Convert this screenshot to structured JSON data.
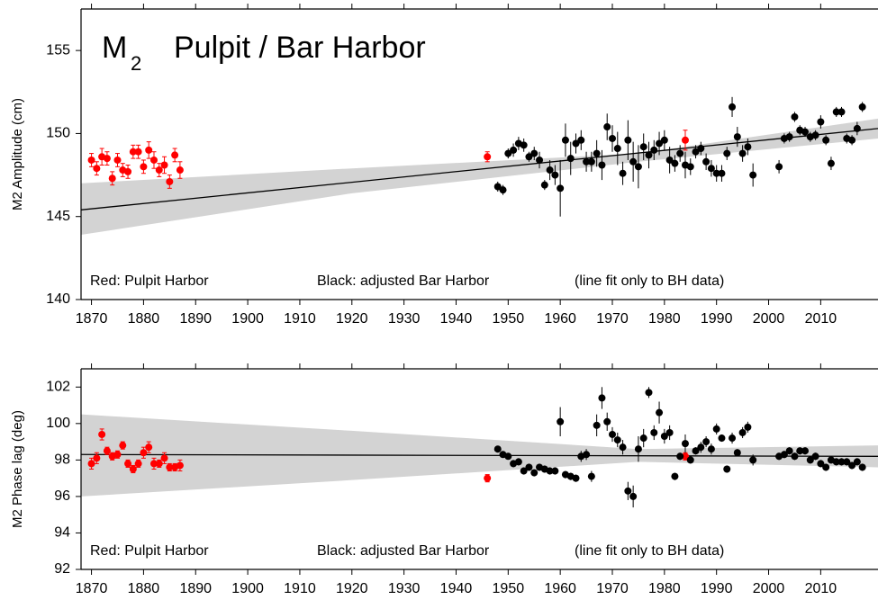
{
  "chart_data": [
    {
      "type": "scatter",
      "title_main": "M",
      "title_sub": "2",
      "title_rest": "Pulpit / Bar Harbor",
      "y_label": "M2 Amplitude (cm)",
      "xlim": [
        1868,
        2021
      ],
      "xticks": [
        1870,
        1880,
        1890,
        1900,
        1910,
        1920,
        1930,
        1940,
        1950,
        1960,
        1970,
        1980,
        1990,
        2000,
        2010
      ],
      "ylim": [
        140,
        157.5
      ],
      "yticks": [
        140,
        145,
        150,
        155
      ],
      "annotations": [
        {
          "text": "Red: Pulpit Harbor",
          "color": "#e00000"
        },
        {
          "text": "Black: adjusted Bar Harbor",
          "color": "#000000"
        },
        {
          "text": "(line fit only to BH data)",
          "color": "#000000"
        }
      ],
      "band": {
        "color": "#d3d3d3",
        "x": [
          1868,
          1920,
          1975,
          2021
        ],
        "lower": [
          143.9,
          146.4,
          148.3,
          149.7
        ],
        "upper": [
          147.0,
          147.9,
          148.8,
          150.9
        ]
      },
      "fit": {
        "color": "#000000",
        "x": [
          1868,
          2021
        ],
        "y": [
          145.4,
          150.3
        ]
      },
      "series": [
        {
          "color": "#ff0000",
          "x": [
            1870,
            1871,
            1872,
            1873,
            1874,
            1875,
            1876,
            1877,
            1878,
            1879,
            1880,
            1881,
            1882,
            1883,
            1884,
            1885,
            1886,
            1887,
            1946,
            1984
          ],
          "values": [
            148.4,
            147.9,
            148.6,
            148.5,
            147.3,
            148.4,
            147.8,
            147.7,
            148.9,
            148.9,
            148.0,
            149.0,
            148.4,
            147.8,
            148.1,
            147.1,
            148.7,
            147.8,
            148.6,
            149.6
          ],
          "errors": [
            0.4,
            0.4,
            0.5,
            0.4,
            0.4,
            0.4,
            0.4,
            0.4,
            0.4,
            0.4,
            0.4,
            0.5,
            0.5,
            0.4,
            0.5,
            0.4,
            0.4,
            0.5,
            0.3,
            0.6
          ]
        },
        {
          "color": "#000000",
          "x": [
            1948,
            1949,
            1950,
            1951,
            1952,
            1953,
            1954,
            1955,
            1956,
            1957,
            1958,
            1959,
            1960,
            1961,
            1962,
            1963,
            1964,
            1965,
            1966,
            1967,
            1968,
            1969,
            1970,
            1971,
            1972,
            1973,
            1974,
            1975,
            1976,
            1977,
            1978,
            1979,
            1980,
            1981,
            1982,
            1983,
            1984,
            1985,
            1986,
            1987,
            1988,
            1989,
            1990,
            1991,
            1992,
            1993,
            1994,
            1995,
            1996,
            1997,
            2002,
            2003,
            2004,
            2005,
            2006,
            2007,
            2008,
            2009,
            2010,
            2011,
            2012,
            2013,
            2014,
            2015,
            2016,
            2017,
            2018
          ],
          "values": [
            146.8,
            146.6,
            148.8,
            149.0,
            149.4,
            149.3,
            148.6,
            148.8,
            148.4,
            146.9,
            147.8,
            147.5,
            146.7,
            149.6,
            148.5,
            149.4,
            149.6,
            148.3,
            148.3,
            148.8,
            148.1,
            150.4,
            149.7,
            149.1,
            147.6,
            149.6,
            148.3,
            148.0,
            149.2,
            148.7,
            149.0,
            149.4,
            149.6,
            148.4,
            148.2,
            148.8,
            148.1,
            148.0,
            148.9,
            149.1,
            148.3,
            147.9,
            147.6,
            147.6,
            148.8,
            151.6,
            149.8,
            148.8,
            149.2,
            147.5,
            148.0,
            149.7,
            149.8,
            151.0,
            150.2,
            150.1,
            149.8,
            149.9,
            150.7,
            149.6,
            148.2,
            151.3,
            151.3,
            149.7,
            149.6,
            150.3,
            151.6
          ],
          "errors": [
            0.3,
            0.3,
            0.3,
            0.4,
            0.4,
            0.4,
            0.3,
            0.4,
            0.5,
            0.3,
            0.6,
            0.6,
            1.7,
            1.0,
            1.0,
            0.6,
            0.6,
            0.6,
            0.6,
            0.8,
            0.9,
            0.8,
            0.8,
            1.0,
            0.7,
            1.2,
            1.2,
            1.3,
            0.8,
            0.8,
            0.6,
            0.7,
            0.6,
            0.8,
            0.5,
            0.5,
            0.8,
            0.5,
            0.4,
            0.4,
            0.5,
            0.5,
            0.5,
            0.5,
            0.4,
            0.6,
            0.6,
            0.5,
            0.5,
            0.7,
            0.4,
            0.3,
            0.3,
            0.3,
            0.3,
            0.3,
            0.3,
            0.3,
            0.4,
            0.3,
            0.4,
            0.3,
            0.3,
            0.3,
            0.3,
            0.4,
            0.3
          ]
        }
      ]
    },
    {
      "type": "scatter",
      "y_label": "M2 Phase lag (deg)",
      "xlim": [
        1868,
        2021
      ],
      "xticks": [
        1870,
        1880,
        1890,
        1900,
        1910,
        1920,
        1930,
        1940,
        1950,
        1960,
        1970,
        1980,
        1990,
        2000,
        2010
      ],
      "ylim": [
        92,
        103
      ],
      "yticks": [
        92,
        94,
        96,
        98,
        100,
        102
      ],
      "annotations": [
        {
          "text": "Red: Pulpit Harbor",
          "color": "#e00000"
        },
        {
          "text": "Black: adjusted Bar Harbor",
          "color": "#000000"
        },
        {
          "text": "(line fit only to BH data)",
          "color": "#000000"
        }
      ],
      "band": {
        "color": "#d3d3d3",
        "x": [
          1868,
          1920,
          1975,
          2021
        ],
        "lower": [
          96.0,
          96.9,
          97.9,
          97.6
        ],
        "upper": [
          100.5,
          99.6,
          98.6,
          98.8
        ]
      },
      "fit": {
        "color": "#000000",
        "x": [
          1868,
          2021
        ],
        "y": [
          98.3,
          98.2
        ]
      },
      "series": [
        {
          "color": "#ff0000",
          "x": [
            1870,
            1871,
            1872,
            1873,
            1874,
            1875,
            1876,
            1877,
            1878,
            1879,
            1880,
            1881,
            1882,
            1883,
            1884,
            1885,
            1886,
            1887,
            1946,
            1984
          ],
          "values": [
            97.8,
            98.1,
            99.4,
            98.5,
            98.2,
            98.3,
            98.8,
            97.8,
            97.5,
            97.8,
            98.4,
            98.7,
            97.8,
            97.8,
            98.1,
            97.6,
            97.6,
            97.7,
            97.0,
            98.2
          ],
          "errors": [
            0.3,
            0.3,
            0.3,
            0.2,
            0.2,
            0.2,
            0.2,
            0.2,
            0.2,
            0.2,
            0.3,
            0.3,
            0.3,
            0.2,
            0.3,
            0.2,
            0.2,
            0.3,
            0.2,
            0.2
          ]
        },
        {
          "color": "#000000",
          "x": [
            1948,
            1949,
            1950,
            1951,
            1952,
            1953,
            1954,
            1955,
            1956,
            1957,
            1958,
            1959,
            1960,
            1961,
            1962,
            1963,
            1964,
            1965,
            1966,
            1967,
            1968,
            1969,
            1970,
            1971,
            1972,
            1973,
            1974,
            1975,
            1976,
            1977,
            1978,
            1979,
            1980,
            1981,
            1982,
            1983,
            1984,
            1985,
            1986,
            1987,
            1988,
            1989,
            1990,
            1991,
            1992,
            1993,
            1994,
            1995,
            1996,
            1997,
            2002,
            2003,
            2004,
            2005,
            2006,
            2007,
            2008,
            2009,
            2010,
            2011,
            2012,
            2013,
            2014,
            2015,
            2016,
            2017,
            2018
          ],
          "values": [
            98.6,
            98.3,
            98.2,
            97.8,
            97.9,
            97.4,
            97.6,
            97.3,
            97.6,
            97.5,
            97.4,
            97.4,
            100.1,
            97.2,
            97.1,
            97.0,
            98.2,
            98.3,
            97.1,
            99.9,
            101.4,
            100.1,
            99.4,
            99.1,
            98.7,
            96.3,
            96.0,
            98.6,
            99.2,
            101.7,
            99.5,
            100.6,
            99.3,
            99.5,
            97.1,
            98.2,
            98.9,
            98.0,
            98.5,
            98.7,
            99.0,
            98.6,
            99.7,
            99.2,
            97.5,
            99.2,
            98.4,
            99.5,
            99.8,
            98.0,
            98.2,
            98.3,
            98.5,
            98.2,
            98.5,
            98.5,
            98.0,
            98.2,
            97.8,
            97.6,
            98.0,
            97.9,
            97.9,
            97.9,
            97.7,
            97.9,
            97.6
          ],
          "errors": [
            0.1,
            0.1,
            0.1,
            0.2,
            0.2,
            0.2,
            0.2,
            0.2,
            0.2,
            0.2,
            0.2,
            0.2,
            0.8,
            0.2,
            0.2,
            0.2,
            0.3,
            0.3,
            0.3,
            0.6,
            0.6,
            0.5,
            0.4,
            0.4,
            0.4,
            0.5,
            0.6,
            0.7,
            0.5,
            0.3,
            0.4,
            0.6,
            0.4,
            0.4,
            0.2,
            0.2,
            0.5,
            0.2,
            0.2,
            0.3,
            0.3,
            0.3,
            0.3,
            0.2,
            0.2,
            0.3,
            0.2,
            0.3,
            0.3,
            0.3,
            0.2,
            0.2,
            0.2,
            0.2,
            0.2,
            0.2,
            0.2,
            0.2,
            0.2,
            0.2,
            0.2,
            0.2,
            0.2,
            0.2,
            0.2,
            0.2,
            0.2
          ]
        }
      ]
    }
  ]
}
